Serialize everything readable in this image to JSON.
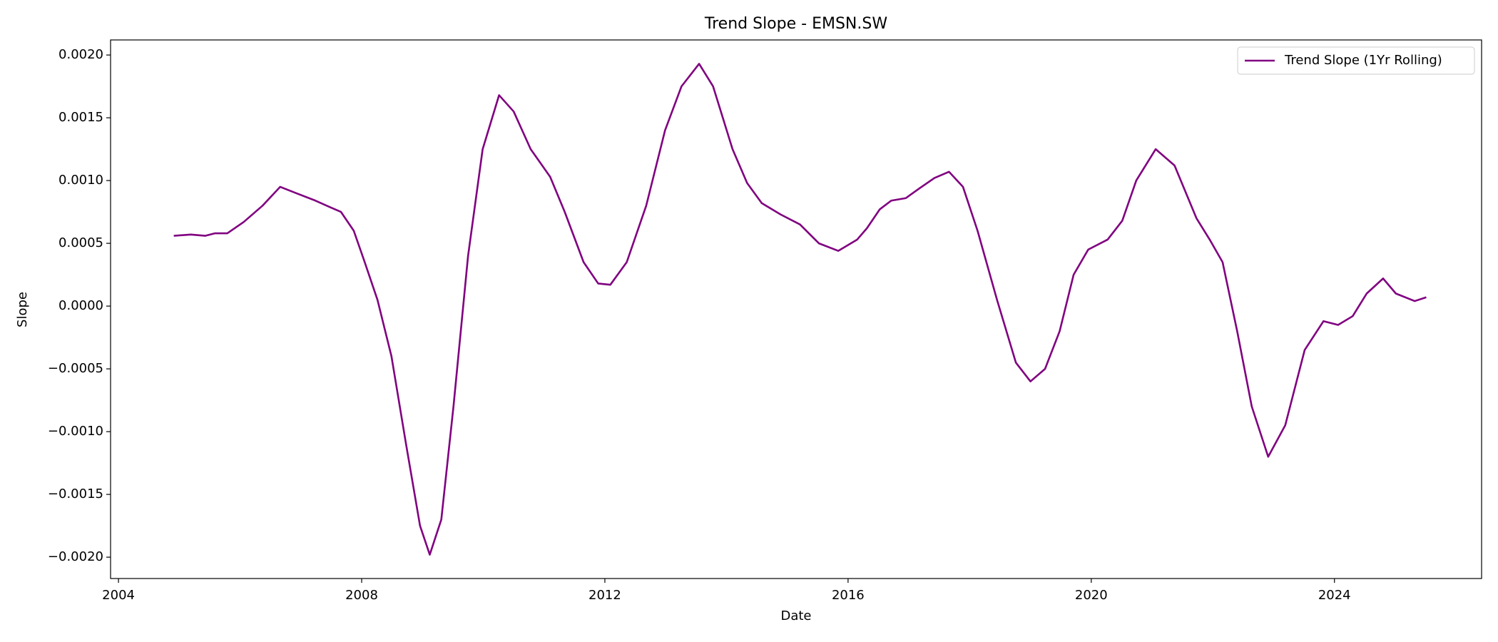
{
  "chart_data": {
    "type": "line",
    "title": "Trend Slope - EMSN.SW",
    "x_label": "Date",
    "y_label": "Slope",
    "x": [
      2004.91,
      2005.19,
      2005.43,
      2005.59,
      2005.79,
      2006.06,
      2006.37,
      2006.66,
      2006.92,
      2007.24,
      2007.47,
      2007.66,
      2007.87,
      2008.05,
      2008.26,
      2008.49,
      2008.73,
      2008.96,
      2009.12,
      2009.31,
      2009.51,
      2009.75,
      2009.99,
      2010.26,
      2010.5,
      2010.78,
      2011.1,
      2011.34,
      2011.65,
      2011.89,
      2012.09,
      2012.36,
      2012.68,
      2012.99,
      2013.26,
      2013.55,
      2013.78,
      2014.1,
      2014.34,
      2014.58,
      2014.89,
      2015.21,
      2015.52,
      2015.84,
      2016.15,
      2016.31,
      2016.52,
      2016.71,
      2016.95,
      2017.18,
      2017.42,
      2017.66,
      2017.89,
      2018.13,
      2018.45,
      2018.76,
      2019.0,
      2019.24,
      2019.48,
      2019.71,
      2019.95,
      2020.27,
      2020.51,
      2020.74,
      2021.06,
      2021.37,
      2021.73,
      2021.96,
      2022.16,
      2022.4,
      2022.64,
      2022.91,
      2023.19,
      2023.51,
      2023.82,
      2024.06,
      2024.3,
      2024.53,
      2024.8,
      2025.01,
      2025.32,
      2025.51
    ],
    "series": [
      {
        "name": "Trend Slope (1Yr Rolling)",
        "color": "#800080",
        "values": [
          0.00056,
          0.00057,
          0.00056,
          0.00058,
          0.00058,
          0.00067,
          0.0008,
          0.00095,
          0.0009,
          0.00084,
          0.00079,
          0.00075,
          0.0006,
          0.00035,
          5e-05,
          -0.0004,
          -0.0011,
          -0.00175,
          -0.00198,
          -0.0017,
          -0.0008,
          0.0004,
          0.00125,
          0.00168,
          0.00155,
          0.00125,
          0.00103,
          0.00075,
          0.00035,
          0.00018,
          0.00017,
          0.00035,
          0.0008,
          0.0014,
          0.00175,
          0.00193,
          0.00175,
          0.00125,
          0.00098,
          0.00082,
          0.00073,
          0.00065,
          0.0005,
          0.00044,
          0.00053,
          0.00062,
          0.00077,
          0.00084,
          0.00086,
          0.00094,
          0.00102,
          0.00107,
          0.00095,
          0.0006,
          5e-05,
          -0.00045,
          -0.0006,
          -0.0005,
          -0.0002,
          0.00025,
          0.00045,
          0.00053,
          0.00068,
          0.001,
          0.00125,
          0.00112,
          0.0007,
          0.00052,
          0.00035,
          -0.0002,
          -0.0008,
          -0.0012,
          -0.00095,
          -0.00035,
          -0.00012,
          -0.00015,
          -8e-05,
          0.0001,
          0.00022,
          0.0001,
          4e-05,
          7e-05
        ]
      }
    ],
    "xlim": [
      2003.87,
      2026.42
    ],
    "xticks": [
      2004,
      2008,
      2012,
      2016,
      2020,
      2024
    ],
    "ylim": [
      -0.00217,
      0.00212
    ],
    "yticks": [
      {
        "value": -0.002,
        "label": "−0.0020"
      },
      {
        "value": -0.0015,
        "label": "−0.0015"
      },
      {
        "value": -0.001,
        "label": "−0.0010"
      },
      {
        "value": -0.0005,
        "label": "−0.0005"
      },
      {
        "value": 0,
        "label": "0.0000"
      },
      {
        "value": 0.0005,
        "label": "0.0005"
      },
      {
        "value": 0.001,
        "label": "0.0010"
      },
      {
        "value": 0.0015,
        "label": "0.0015"
      },
      {
        "value": 0.002,
        "label": "0.0020"
      }
    ],
    "legend": "upper right",
    "grid": false
  }
}
